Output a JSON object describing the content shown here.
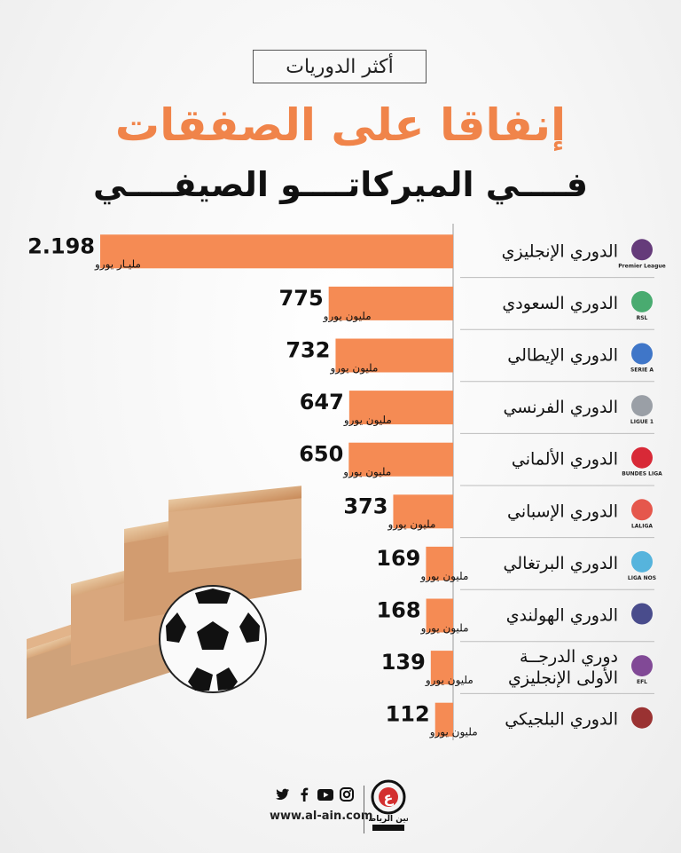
{
  "header": {
    "kicker": "أكثر الدوريات",
    "title": "إنفاقا على الصفقات",
    "subtitle": "فــــي الميركاتــــو الصيفــــي"
  },
  "colors": {
    "bar": "#f58b54",
    "title": "#f0844a"
  },
  "chart_data": {
    "type": "bar",
    "orientation": "horizontal",
    "title": "إنفاقا على الصفقات",
    "categories": [
      "الدوري الإنجليزي",
      "الدوري السعودي",
      "الدوري الإيطالي",
      "الدوري الفرنسي",
      "الدوري الألماني",
      "الدوري الإسباني",
      "الدوري البرتغالي",
      "الدوري الهولندي",
      "دوري الدرجة الأولى الإنجليزي",
      "الدوري البلجيكي"
    ],
    "category_lines": [
      [
        "الدوري الإنجليزي"
      ],
      [
        "الدوري السعودي"
      ],
      [
        "الدوري الإيطالي"
      ],
      [
        "الدوري الفرنسي"
      ],
      [
        "الدوري الألماني"
      ],
      [
        "الدوري الإسباني"
      ],
      [
        "الدوري البرتغالي"
      ],
      [
        "الدوري الهولندي"
      ],
      [
        "دوري الدرجــة",
        "الأولى الإنجليزي"
      ],
      [
        "الدوري البلجيكي"
      ]
    ],
    "value_labels": [
      "2.198",
      "775",
      "732",
      "647",
      "650",
      "373",
      "169",
      "168",
      "139",
      "112"
    ],
    "unit_labels": [
      "مليـار يورو",
      "مليون يورو",
      "مليون يورو",
      "مليون يورو",
      "مليون يورو",
      "مليون يورو",
      "مليون يورو",
      "مليون يورو",
      "مليون يورو",
      "مليون يورو"
    ],
    "values_million_eur": [
      2198,
      775,
      732,
      647,
      650,
      373,
      169,
      168,
      139,
      112
    ],
    "logo_icons": [
      "premier-league-icon",
      "rsl-icon",
      "serie-a-icon",
      "ligue-1-icon",
      "bundesliga-icon",
      "laliga-icon",
      "liga-nos-icon",
      "eredivisie-icon",
      "efl-icon",
      "pro-league-icon"
    ],
    "logo_texts": [
      "Premier League",
      "RSL",
      "SERIE A",
      "LIGUE 1",
      "BUNDES LIGA",
      "LALIGA",
      "LIGA NOS",
      "",
      "EFL",
      ""
    ]
  },
  "footer": {
    "url": "www.al-ain.com",
    "socials": [
      "twitter-icon",
      "facebook-icon",
      "youtube-icon",
      "instagram-icon"
    ],
    "brand": "العين الرياضية"
  }
}
